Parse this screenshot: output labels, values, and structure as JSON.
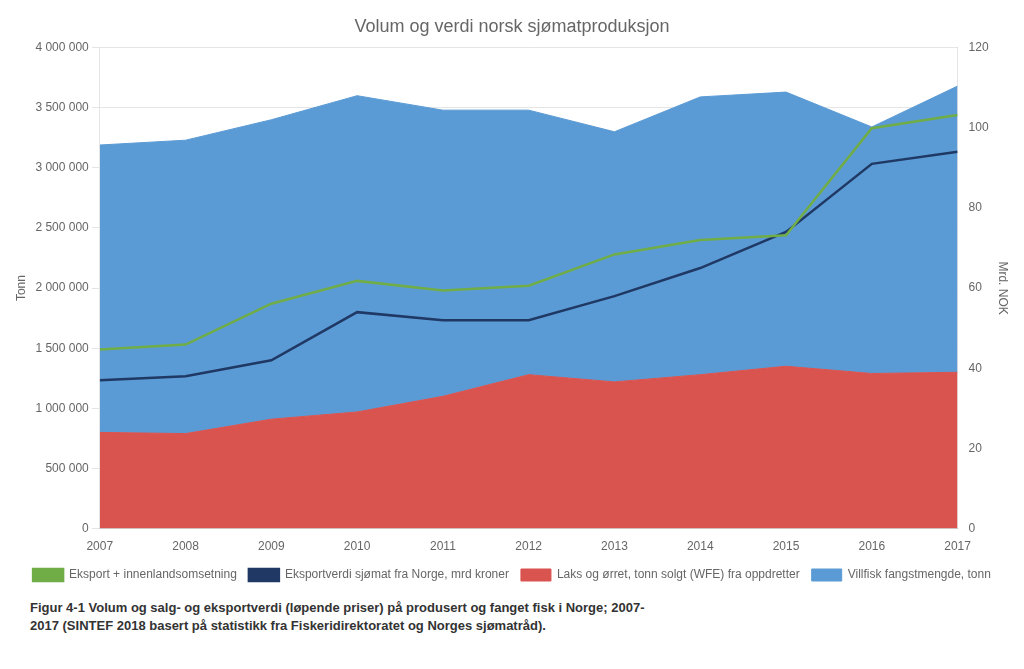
{
  "chart_data": {
    "type": "area",
    "title": "Volum og verdi norsk sjømatproduksjon",
    "x": [
      2007,
      2008,
      2009,
      2010,
      2011,
      2012,
      2013,
      2014,
      2015,
      2016,
      2017
    ],
    "xlim": [
      2007,
      2017
    ],
    "xticks": [
      2007,
      2008,
      2009,
      2010,
      2011,
      2012,
      2013,
      2014,
      2015,
      2016,
      2017
    ],
    "ylabel": "Tonn",
    "ylim": [
      0,
      4000000
    ],
    "yticks": [
      0,
      {
        "value": 500000,
        "label": "500 000"
      },
      {
        "value": 1000000,
        "label": "1 000 000"
      },
      {
        "value": 1500000,
        "label": "1 500 000"
      },
      {
        "value": 2000000,
        "label": "2 000 000"
      },
      {
        "value": 2500000,
        "label": "2 500 000"
      },
      {
        "value": 3000000,
        "label": "3 000 000"
      },
      {
        "value": 3500000,
        "label": "3 500 000"
      },
      {
        "value": 4000000,
        "label": "4 000 000"
      }
    ],
    "y2label": "Mrd. NOK",
    "y2lim": [
      0,
      120
    ],
    "y2ticks": [
      0,
      20,
      40,
      60,
      80,
      100,
      120
    ],
    "grid": true,
    "legend": "bottom",
    "stacked": true,
    "series": [
      {
        "name": "Laks og ørret, tonn solgt (WFE) fra oppdretter",
        "type": "area",
        "color": "#d9534f",
        "values": [
          800000,
          790000,
          910000,
          970000,
          1100000,
          1280000,
          1220000,
          1280000,
          1350000,
          1290000,
          1300000
        ]
      },
      {
        "name": "Villfisk fangstmengde, tonn",
        "type": "area",
        "color": "#5b9bd5",
        "values": [
          2390000,
          2440000,
          2490000,
          2630000,
          2380000,
          2200000,
          2080000,
          2310000,
          2280000,
          2050000,
          2380000
        ]
      },
      {
        "name": "Eksport + innenlandsomsetning",
        "type": "line",
        "color": "#70ad47",
        "values": [
          1490000,
          1530000,
          1870000,
          2060000,
          1980000,
          2020000,
          2280000,
          2400000,
          2440000,
          3330000,
          3440000
        ]
      },
      {
        "name": "Eksportverdi sjømat fra Norge, mrd kroner",
        "type": "line",
        "color": "#1f3864",
        "axis": "y2",
        "values": [
          37,
          38,
          42,
          54,
          52,
          52,
          58,
          65,
          74,
          91,
          94
        ]
      }
    ],
    "annotations": [
      "Figur 4-1 Volum og salg- og eksportverdi (løpende priser) på produsert og fanget fisk i Norge; 2007-",
      "2017 (SINTEF 2018 basert på statistikk fra Fiskeridirektoratet og Norges sjømatråd)."
    ]
  }
}
